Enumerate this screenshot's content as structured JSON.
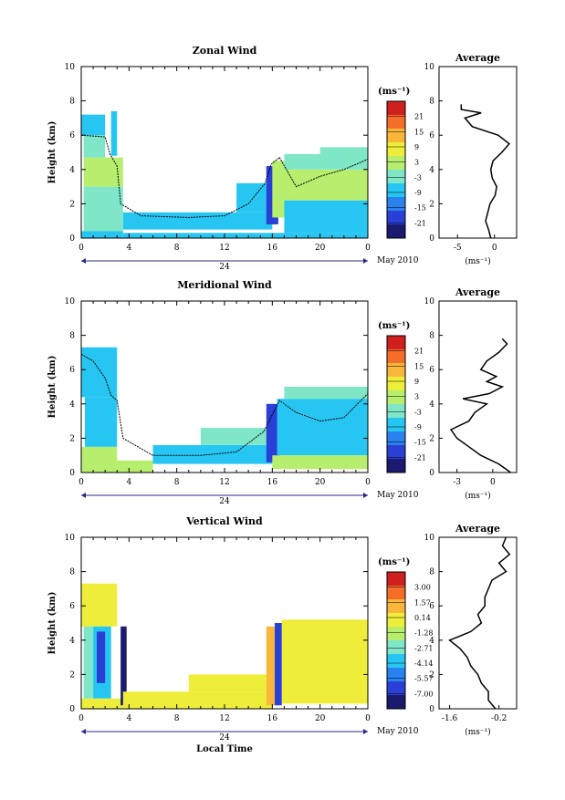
{
  "figure": {
    "x_axis_label": "Local Time",
    "date_label": "May 2010",
    "date_marker": "24",
    "unit_label": "(ms⁻¹)"
  },
  "chart_data": [
    {
      "type": "heatmap",
      "title": "Zonal Wind",
      "ylabel": "Height (km)",
      "xlabel": "",
      "x_ticks": [
        "0",
        "4",
        "8",
        "12",
        "16",
        "20",
        "0"
      ],
      "y_ticks": [
        "0",
        "2",
        "4",
        "6",
        "8",
        "10"
      ],
      "xlim": [
        0,
        24
      ],
      "ylim": [
        0,
        10
      ],
      "colorbar_label": "(ms⁻¹)",
      "colorbar_ticks": [
        "21",
        "15",
        "9",
        "3",
        "-3",
        "-9",
        "-15",
        "-21"
      ],
      "colorbar_range": [
        -24,
        24
      ],
      "regions": [
        {
          "t0": 0.0,
          "t1": 3.5,
          "h0": 0.0,
          "h1": 0.4,
          "v": -5
        },
        {
          "t0": 3.5,
          "t1": 24,
          "h0": 0.0,
          "h1": 0.3,
          "v": -8
        },
        {
          "t0": 0.2,
          "t1": 3.5,
          "h0": 0.4,
          "h1": 3.0,
          "v": -4
        },
        {
          "t0": 0.2,
          "t1": 3.5,
          "h0": 3.0,
          "h1": 4.7,
          "v": 1
        },
        {
          "t0": 0.2,
          "t1": 2.0,
          "h0": 4.7,
          "h1": 6.0,
          "v": -3
        },
        {
          "t0": 0.0,
          "t1": 2.0,
          "h0": 6.0,
          "h1": 7.2,
          "v": -8
        },
        {
          "t0": 2.5,
          "t1": 3.0,
          "h0": 4.8,
          "h1": 7.4,
          "v": -8
        },
        {
          "t0": 3.5,
          "t1": 16,
          "h0": 0.5,
          "h1": 1.5,
          "v": -6
        },
        {
          "t0": 13,
          "t1": 17,
          "h0": 1.5,
          "h1": 3.2,
          "v": -5
        },
        {
          "t0": 15.5,
          "t1": 16.5,
          "h0": 0.8,
          "h1": 4.2,
          "v": -15
        },
        {
          "t0": 16,
          "t1": 17.5,
          "h0": 1.2,
          "h1": 4.5,
          "v": 1
        },
        {
          "t0": 17,
          "t1": 24,
          "h0": 0.3,
          "h1": 2.2,
          "v": -6
        },
        {
          "t0": 17,
          "t1": 24,
          "h0": 2.2,
          "h1": 4.0,
          "v": 1
        },
        {
          "t0": 17,
          "t1": 24,
          "h0": 4.0,
          "h1": 4.9,
          "v": -4
        },
        {
          "t0": 20,
          "t1": 24,
          "h0": 4.6,
          "h1": 5.3,
          "v": -3
        }
      ],
      "contour": [
        [
          0,
          6.0
        ],
        [
          2,
          5.9
        ],
        [
          2.4,
          4.9
        ],
        [
          3.0,
          4.2
        ],
        [
          3.3,
          2.0
        ],
        [
          5,
          1.3
        ],
        [
          9,
          1.2
        ],
        [
          12,
          1.3
        ],
        [
          14,
          2.0
        ],
        [
          15.4,
          3.2
        ],
        [
          15.9,
          4.3
        ],
        [
          16.6,
          4.7
        ],
        [
          18,
          3.0
        ],
        [
          20,
          3.6
        ],
        [
          22,
          4.0
        ],
        [
          24,
          4.6
        ]
      ],
      "average": {
        "title": "Average",
        "xlabel": "(ms⁻¹)",
        "x_ticks": [
          "-5",
          "0"
        ],
        "xlim": [
          -7.5,
          3
        ],
        "heights": [
          0,
          0.5,
          1,
          1.5,
          2,
          2.5,
          3,
          3.5,
          4,
          4.5,
          5,
          5.5,
          6,
          6.5,
          7,
          7.3,
          7.5,
          7.8
        ],
        "values": [
          -0.5,
          -0.8,
          -1.2,
          -0.9,
          -0.6,
          0.1,
          0.3,
          -0.3,
          -0.5,
          -0.2,
          1.0,
          2.0,
          0.5,
          -3.0,
          -4.0,
          -1.8,
          -4.5,
          -4.5
        ]
      }
    },
    {
      "type": "heatmap",
      "title": "Meridional Wind",
      "ylabel": "Height (km)",
      "xlabel": "",
      "x_ticks": [
        "0",
        "4",
        "8",
        "12",
        "16",
        "20",
        "0"
      ],
      "y_ticks": [
        "0",
        "2",
        "4",
        "6",
        "8",
        "10"
      ],
      "xlim": [
        0,
        24
      ],
      "ylim": [
        0,
        10
      ],
      "colorbar_label": "(ms⁻¹)",
      "colorbar_ticks": [
        "21",
        "15",
        "9",
        "3",
        "-3",
        "-9",
        "-15",
        "-21"
      ],
      "colorbar_range": [
        -24,
        24
      ],
      "regions": [
        {
          "t0": 0.0,
          "t1": 3.0,
          "h0": 0.0,
          "h1": 1.5,
          "v": 1
        },
        {
          "t0": 0.3,
          "t1": 3.0,
          "h0": 1.5,
          "h1": 4.4,
          "v": -5
        },
        {
          "t0": 0.0,
          "t1": 3.0,
          "h0": 4.4,
          "h1": 7.3,
          "v": -6
        },
        {
          "t0": 3.0,
          "t1": 6.0,
          "h0": 0.0,
          "h1": 0.7,
          "v": 0
        },
        {
          "t0": 6.0,
          "t1": 16,
          "h0": 0.5,
          "h1": 1.6,
          "v": -6
        },
        {
          "t0": 10,
          "t1": 16,
          "h0": 1.6,
          "h1": 2.6,
          "v": -4
        },
        {
          "t0": 15.5,
          "t1": 16.6,
          "h0": 0.6,
          "h1": 4.0,
          "v": -15
        },
        {
          "t0": 16.4,
          "t1": 24,
          "h0": 1.0,
          "h1": 4.3,
          "v": -6
        },
        {
          "t0": 17,
          "t1": 24,
          "h0": 4.3,
          "h1": 5.0,
          "v": -4
        },
        {
          "t0": 16,
          "t1": 24,
          "h0": 0.2,
          "h1": 1.0,
          "v": 1
        }
      ],
      "contour": [
        [
          0,
          6.9
        ],
        [
          1,
          6.5
        ],
        [
          2,
          5.5
        ],
        [
          2.5,
          4.5
        ],
        [
          3,
          4.2
        ],
        [
          3.5,
          2.0
        ],
        [
          6,
          1.0
        ],
        [
          10,
          1.0
        ],
        [
          13,
          1.2
        ],
        [
          15.3,
          2.4
        ],
        [
          16.6,
          4.2
        ],
        [
          18,
          3.5
        ],
        [
          20,
          3.0
        ],
        [
          22,
          3.2
        ],
        [
          24,
          4.6
        ]
      ],
      "average": {
        "title": "Average",
        "xlabel": "(ms⁻¹)",
        "x_ticks": [
          "-3",
          "0"
        ],
        "xlim": [
          -4.5,
          2
        ],
        "heights": [
          0,
          0.5,
          1,
          1.5,
          2,
          2.5,
          3,
          3.5,
          4,
          4.3,
          4.6,
          5,
          5.3,
          5.6,
          6,
          6.5,
          7,
          7.5,
          7.8
        ],
        "values": [
          1.5,
          0.5,
          -1.0,
          -2.0,
          -3.0,
          -3.5,
          -2.0,
          -1.5,
          -0.5,
          -2.5,
          -0.3,
          0.8,
          -0.5,
          0.3,
          -1.0,
          -0.5,
          0.5,
          1.2,
          0.8
        ]
      }
    },
    {
      "type": "heatmap",
      "title": "Vertical Wind",
      "ylabel": "Height (km)",
      "xlabel": "Local Time",
      "x_ticks": [
        "0",
        "4",
        "8",
        "12",
        "16",
        "20",
        "0"
      ],
      "y_ticks": [
        "0",
        "2",
        "4",
        "6",
        "8",
        "10"
      ],
      "xlim": [
        0,
        24
      ],
      "ylim": [
        0,
        10
      ],
      "colorbar_label": "(ms⁻¹)",
      "colorbar_ticks": [
        "3.00",
        "1.57",
        "0.14",
        "-1.28",
        "-2.71",
        "-4.14",
        "-5.57",
        "-7.00"
      ],
      "colorbar_range": [
        -8.5,
        4.5
      ],
      "regions": [
        {
          "t0": 0.0,
          "t1": 3.5,
          "h0": 0.0,
          "h1": 0.6,
          "v": 0.3
        },
        {
          "t0": 0.0,
          "t1": 3.0,
          "h0": 4.8,
          "h1": 7.3,
          "v": -0.2
        },
        {
          "t0": 0.2,
          "t1": 1.0,
          "h0": 0.6,
          "h1": 4.8,
          "v": -3.0
        },
        {
          "t0": 1.0,
          "t1": 2.5,
          "h0": 0.6,
          "h1": 4.8,
          "v": -4.5
        },
        {
          "t0": 1.3,
          "t1": 2.0,
          "h0": 1.5,
          "h1": 4.5,
          "v": -6.5
        },
        {
          "t0": 3.3,
          "t1": 3.8,
          "h0": 0.2,
          "h1": 4.8,
          "v": -7.5
        },
        {
          "t0": 3.5,
          "t1": 16,
          "h0": 0.0,
          "h1": 1.0,
          "v": 0.3
        },
        {
          "t0": 9,
          "t1": 16,
          "h0": 1.0,
          "h1": 2.0,
          "v": 0.2
        },
        {
          "t0": 15.5,
          "t1": 16.2,
          "h0": 0.2,
          "h1": 4.8,
          "v": 0.8
        },
        {
          "t0": 16.2,
          "t1": 16.8,
          "h0": 0.2,
          "h1": 5.0,
          "v": -6.5
        },
        {
          "t0": 16.8,
          "t1": 24,
          "h0": 0.3,
          "h1": 5.2,
          "v": 0.4
        }
      ],
      "contour": [],
      "average": {
        "title": "Average",
        "xlabel": "(ms⁻¹)",
        "x_ticks": [
          "-1.6",
          "-0.2"
        ],
        "xlim": [
          -1.9,
          0.3
        ],
        "heights": [
          0,
          0.5,
          1,
          1.5,
          2,
          2.5,
          3,
          3.5,
          4,
          4.5,
          5,
          5.5,
          6,
          6.5,
          7,
          7.5,
          8,
          8.5,
          9,
          9.5,
          10
        ],
        "values": [
          -0.3,
          -0.5,
          -0.5,
          -0.7,
          -0.8,
          -1.0,
          -1.1,
          -1.3,
          -1.6,
          -1.0,
          -0.7,
          -0.8,
          -0.6,
          -0.6,
          -0.5,
          -0.4,
          0.0,
          -0.2,
          0.1,
          -0.1,
          0.0
        ]
      }
    }
  ]
}
